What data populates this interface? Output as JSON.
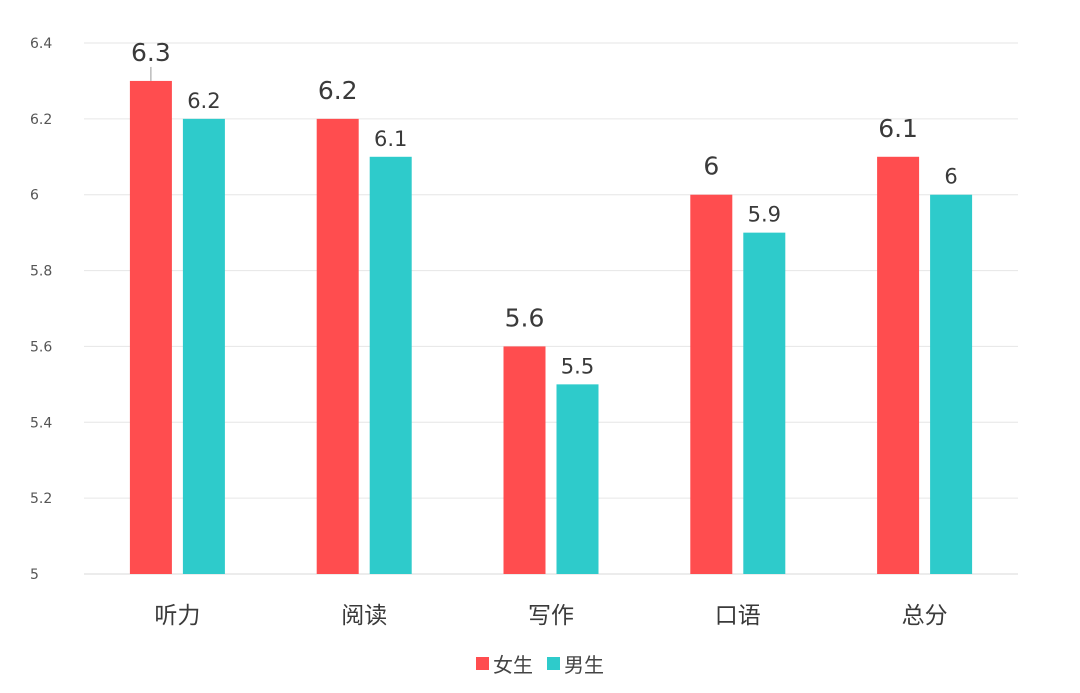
{
  "chart_data": {
    "type": "bar",
    "categories": [
      "听力",
      "阅读",
      "写作",
      "口语",
      "总分"
    ],
    "series": [
      {
        "name": "女生",
        "color": "#ff4d4f",
        "values": [
          6.3,
          6.2,
          5.6,
          6.0,
          6.1
        ],
        "labels": [
          "6.3",
          "6.2",
          "5.6",
          "6",
          "6.1"
        ]
      },
      {
        "name": "男生",
        "color": "#2ecbcb",
        "values": [
          6.2,
          6.1,
          5.5,
          5.9,
          6.0
        ],
        "labels": [
          "6.2",
          "6.1",
          "5.5",
          "5.9",
          "6"
        ]
      }
    ],
    "y_ticks": [
      "5",
      "5.2",
      "5.4",
      "5.6",
      "5.8",
      "6",
      "6.2",
      "6.4"
    ],
    "ylim": [
      5,
      6.4
    ],
    "grid": true,
    "legend_position": "bottom-center",
    "title": "",
    "xlabel": "",
    "ylabel": ""
  }
}
